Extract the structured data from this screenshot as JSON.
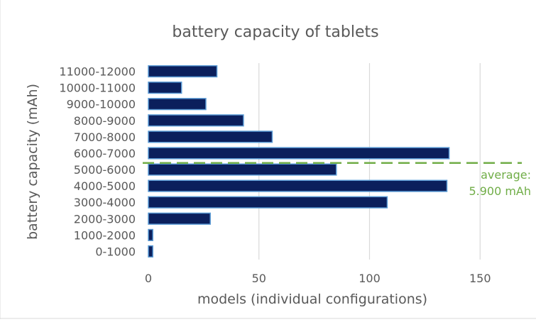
{
  "chart_data": {
    "type": "bar",
    "orientation": "horizontal",
    "title": "battery capacity of tablets",
    "xlabel": "models (individual configurations)",
    "ylabel": "battery capacity (mAh)",
    "categories": [
      "0-1000",
      "1000-2000",
      "2000-3000",
      "3000-4000",
      "4000-5000",
      "5000-6000",
      "6000-7000",
      "7000-8000",
      "8000-9000",
      "9000-10000",
      "10000-11000",
      "11000-12000"
    ],
    "values": [
      2,
      2,
      28,
      108,
      135,
      85,
      136,
      56,
      43,
      26,
      15,
      31
    ],
    "xlim": [
      0,
      170
    ],
    "xticks": [
      0,
      50,
      100,
      150
    ],
    "grid": "vertical",
    "bar_color": "#0b1f5c",
    "bar_edge_color": "#5b9bd5",
    "annotation": {
      "line1": "average:",
      "line2": "5.900 mAh",
      "value_mAh": 5900,
      "color": "#70ad47"
    }
  }
}
